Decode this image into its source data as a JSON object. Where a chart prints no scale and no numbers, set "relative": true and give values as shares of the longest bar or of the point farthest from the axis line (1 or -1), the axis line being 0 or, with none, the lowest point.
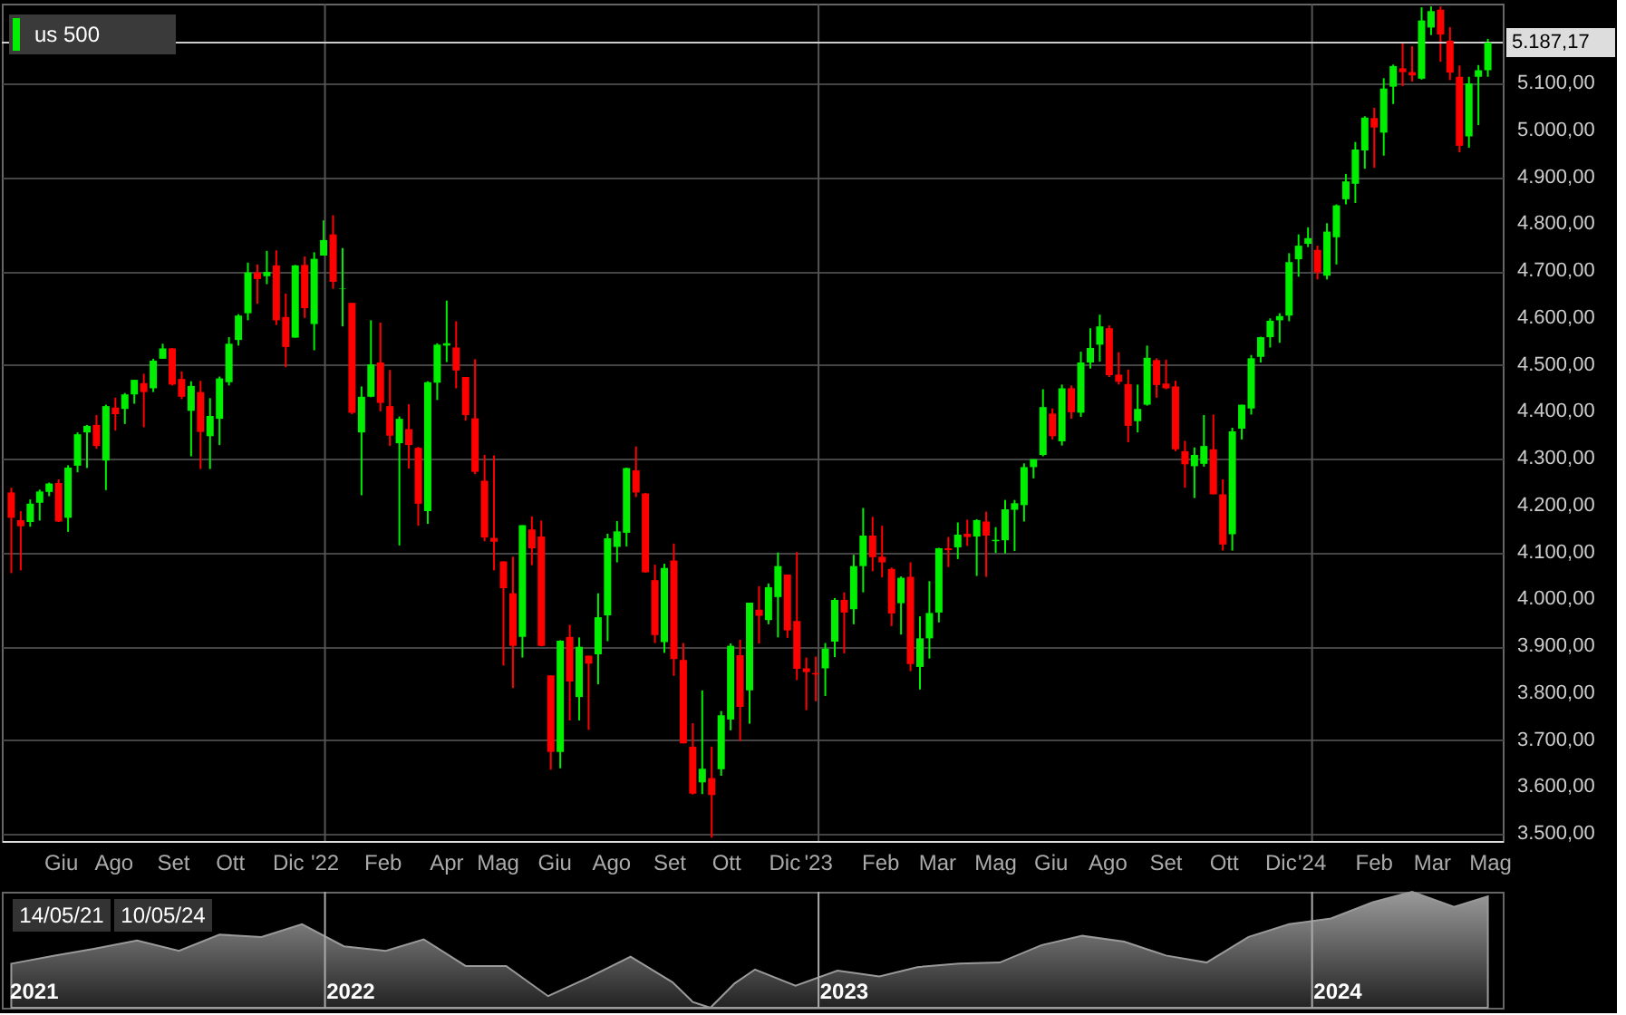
{
  "chart_data": [
    {
      "type": "candlestick",
      "legend": "top left",
      "grid": "y",
      "xlim": [
        "2021-05-07",
        "2024-05-21"
      ],
      "ylim": [
        3485,
        5270
      ],
      "xticks": [
        {
          "value": "2021-06-20",
          "label": "Giu"
        },
        {
          "value": "2021-07-29",
          "label": "Ago"
        },
        {
          "value": "2021-09-11",
          "label": "Set"
        },
        {
          "value": "2021-10-23",
          "label": "Ott"
        },
        {
          "value": "2021-12-05",
          "label": "Dic"
        },
        {
          "value": "2022-01-01",
          "label": "'22"
        },
        {
          "value": "2022-02-13",
          "label": "Feb"
        },
        {
          "value": "2022-04-01",
          "label": "Apr"
        },
        {
          "value": "2022-05-09",
          "label": "Mag"
        },
        {
          "value": "2022-06-20",
          "label": "Giu"
        },
        {
          "value": "2022-08-01",
          "label": "Ago"
        },
        {
          "value": "2022-09-13",
          "label": "Set"
        },
        {
          "value": "2022-10-25",
          "label": "Ott"
        },
        {
          "value": "2022-12-07",
          "label": "Dic"
        },
        {
          "value": "2023-01-01",
          "label": "'23"
        },
        {
          "value": "2023-02-16",
          "label": "Feb"
        },
        {
          "value": "2023-03-30",
          "label": "Mar"
        },
        {
          "value": "2023-05-12",
          "label": "Mag"
        },
        {
          "value": "2023-06-22",
          "label": "Giu"
        },
        {
          "value": "2023-08-03",
          "label": "Ago"
        },
        {
          "value": "2023-09-15",
          "label": "Set"
        },
        {
          "value": "2023-10-28",
          "label": "Ott"
        },
        {
          "value": "2023-12-09",
          "label": "Dic"
        },
        {
          "value": "2024-01-01",
          "label": "'24"
        },
        {
          "value": "2024-02-16",
          "label": "Feb"
        },
        {
          "value": "2024-03-30",
          "label": "Mar"
        },
        {
          "value": "2024-05-12",
          "label": "Mag"
        }
      ],
      "yticks": [
        {
          "value": 3500,
          "label": "3.500,00"
        },
        {
          "value": 3600,
          "label": "3.600,00"
        },
        {
          "value": 3700,
          "label": "3.700,00"
        },
        {
          "value": 3800,
          "label": "3.800,00"
        },
        {
          "value": 3900,
          "label": "3.900,00"
        },
        {
          "value": 4000,
          "label": "4.000,00"
        },
        {
          "value": 4100,
          "label": "4.100,00"
        },
        {
          "value": 4200,
          "label": "4.200,00"
        },
        {
          "value": 4300,
          "label": "4.300,00"
        },
        {
          "value": 4400,
          "label": "4.400,00"
        },
        {
          "value": 4500,
          "label": "4.500,00"
        },
        {
          "value": 4600,
          "label": "4.600,00"
        },
        {
          "value": 4700,
          "label": "4.700,00"
        },
        {
          "value": 4800,
          "label": "4.800,00"
        },
        {
          "value": 4900,
          "label": "4.900,00"
        },
        {
          "value": 5000,
          "label": "5.000,00"
        },
        {
          "value": 5100,
          "label": "5.100,00"
        }
      ],
      "ref_lines": [
        {
          "axis": "x",
          "value": "2022-01-01",
          "color": "#555555"
        },
        {
          "axis": "x",
          "value": "2023-01-01",
          "color": "#555555"
        },
        {
          "axis": "x",
          "value": "2024-01-01",
          "color": "#555555"
        },
        {
          "axis": "y",
          "value": 5187.17,
          "label": "5.187,17",
          "color": "#cccccc"
        }
      ],
      "series": [
        {
          "name": "us 500",
          "color": "#00ee00",
          "x": [
            "2021-05-14",
            "2021-05-21",
            "2021-05-28",
            "2021-06-04",
            "2021-06-11",
            "2021-06-18",
            "2021-06-25",
            "2021-07-02",
            "2021-07-09",
            "2021-07-16",
            "2021-07-23",
            "2021-07-30",
            "2021-08-06",
            "2021-08-13",
            "2021-08-20",
            "2021-08-27",
            "2021-09-03",
            "2021-09-10",
            "2021-09-17",
            "2021-09-24",
            "2021-10-01",
            "2021-10-08",
            "2021-10-15",
            "2021-10-22",
            "2021-10-29",
            "2021-11-05",
            "2021-11-12",
            "2021-11-19",
            "2021-11-26",
            "2021-12-03",
            "2021-12-10",
            "2021-12-17",
            "2021-12-24",
            "2021-12-31",
            "2022-01-07",
            "2022-01-14",
            "2022-01-21",
            "2022-01-28",
            "2022-02-04",
            "2022-02-11",
            "2022-02-18",
            "2022-02-25",
            "2022-03-04",
            "2022-03-11",
            "2022-03-18",
            "2022-03-25",
            "2022-04-01",
            "2022-04-08",
            "2022-04-15",
            "2022-04-22",
            "2022-04-29",
            "2022-05-06",
            "2022-05-13",
            "2022-05-20",
            "2022-05-27",
            "2022-06-03",
            "2022-06-10",
            "2022-06-17",
            "2022-06-24",
            "2022-07-01",
            "2022-07-08",
            "2022-07-15",
            "2022-07-22",
            "2022-07-29",
            "2022-08-05",
            "2022-08-12",
            "2022-08-19",
            "2022-08-26",
            "2022-09-02",
            "2022-09-09",
            "2022-09-16",
            "2022-09-23",
            "2022-09-30",
            "2022-10-07",
            "2022-10-14",
            "2022-10-21",
            "2022-10-28",
            "2022-11-04",
            "2022-11-11",
            "2022-11-18",
            "2022-11-25",
            "2022-12-02",
            "2022-12-09",
            "2022-12-16",
            "2022-12-23",
            "2022-12-30",
            "2023-01-06",
            "2023-01-13",
            "2023-01-20",
            "2023-01-27",
            "2023-02-03",
            "2023-02-10",
            "2023-02-17",
            "2023-02-24",
            "2023-03-03",
            "2023-03-10",
            "2023-03-17",
            "2023-03-24",
            "2023-03-31",
            "2023-04-07",
            "2023-04-14",
            "2023-04-21",
            "2023-04-28",
            "2023-05-05",
            "2023-05-12",
            "2023-05-19",
            "2023-05-26",
            "2023-06-02",
            "2023-06-09",
            "2023-06-16",
            "2023-06-23",
            "2023-06-30",
            "2023-07-07",
            "2023-07-14",
            "2023-07-21",
            "2023-07-28",
            "2023-08-04",
            "2023-08-11",
            "2023-08-18",
            "2023-08-25",
            "2023-09-01",
            "2023-09-08",
            "2023-09-15",
            "2023-09-22",
            "2023-09-29",
            "2023-10-06",
            "2023-10-13",
            "2023-10-20",
            "2023-10-27",
            "2023-11-03",
            "2023-11-10",
            "2023-11-17",
            "2023-11-24",
            "2023-12-01",
            "2023-12-08",
            "2023-12-15",
            "2023-12-22",
            "2023-12-29",
            "2024-01-05",
            "2024-01-12",
            "2024-01-19",
            "2024-01-26",
            "2024-02-02",
            "2024-02-09",
            "2024-02-16",
            "2024-02-23",
            "2024-03-01",
            "2024-03-08",
            "2024-03-15",
            "2024-03-22",
            "2024-03-29",
            "2024-04-05",
            "2024-04-12",
            "2024-04-19",
            "2024-04-26",
            "2024-05-03",
            "2024-05-10"
          ],
          "ohlc": [
            [
              4228,
              4238,
              4056,
              4174
            ],
            [
              4169,
              4188,
              4062,
              4156
            ],
            [
              4165,
              4213,
              4155,
              4204
            ],
            [
              4206,
              4234,
              4168,
              4230
            ],
            [
              4229,
              4249,
              4220,
              4247
            ],
            [
              4248,
              4256,
              4165,
              4166
            ],
            [
              4174,
              4286,
              4144,
              4281
            ],
            [
              4285,
              4356,
              4271,
              4352
            ],
            [
              4356,
              4372,
              4280,
              4370
            ],
            [
              4372,
              4393,
              4321,
              4327
            ],
            [
              4296,
              4415,
              4233,
              4412
            ],
            [
              4409,
              4430,
              4360,
              4395
            ],
            [
              4406,
              4440,
              4374,
              4437
            ],
            [
              4437,
              4468,
              4417,
              4468
            ],
            [
              4461,
              4481,
              4367,
              4442
            ],
            [
              4450,
              4513,
              4442,
              4509
            ],
            [
              4513,
              4545,
              4513,
              4535
            ],
            [
              4535,
              4536,
              4456,
              4458
            ],
            [
              4470,
              4486,
              4427,
              4432
            ],
            [
              4402,
              4465,
              4305,
              4455
            ],
            [
              4442,
              4466,
              4278,
              4357
            ],
            [
              4348,
              4429,
              4278,
              4391
            ],
            [
              4385,
              4475,
              4329,
              4471
            ],
            [
              4463,
              4559,
              4456,
              4545
            ],
            [
              4553,
              4608,
              4541,
              4605
            ],
            [
              4610,
              4718,
              4595,
              4697
            ],
            [
              4697,
              4714,
              4630,
              4683
            ],
            [
              4689,
              4743,
              4672,
              4698
            ],
            [
              4712,
              4744,
              4585,
              4595
            ],
            [
              4602,
              4652,
              4495,
              4538
            ],
            [
              4558,
              4713,
              4558,
              4712
            ],
            [
              4713,
              4731,
              4600,
              4621
            ],
            [
              4587,
              4740,
              4531,
              4726
            ],
            [
              4733,
              4808,
              4733,
              4766
            ],
            [
              4778,
              4819,
              4662,
              4677
            ],
            [
              4662,
              4749,
              4582,
              4663
            ],
            [
              4632,
              4632,
              4395,
              4398
            ],
            [
              4356,
              4454,
              4222,
              4432
            ],
            [
              4432,
              4595,
              4431,
              4501
            ],
            [
              4505,
              4590,
              4401,
              4419
            ],
            [
              4412,
              4489,
              4327,
              4349
            ],
            [
              4333,
              4390,
              4115,
              4385
            ],
            [
              4363,
              4416,
              4279,
              4329
            ],
            [
              4323,
              4325,
              4157,
              4204
            ],
            [
              4188,
              4465,
              4161,
              4463
            ],
            [
              4462,
              4546,
              4425,
              4543
            ],
            [
              4541,
              4637,
              4506,
              4546
            ],
            [
              4537,
              4593,
              4450,
              4488
            ],
            [
              4474,
              4474,
              4381,
              4393
            ],
            [
              4386,
              4512,
              4267,
              4272
            ],
            [
              4253,
              4308,
              4124,
              4132
            ],
            [
              4131,
              4307,
              4062,
              4123
            ],
            [
              4081,
              4081,
              3859,
              4024
            ],
            [
              4013,
              4091,
              3811,
              3901
            ],
            [
              3920,
              4158,
              3876,
              4158
            ],
            [
              4149,
              4177,
              4073,
              4109
            ],
            [
              4134,
              4168,
              3900,
              3901
            ],
            [
              3838,
              3838,
              3637,
              3675
            ],
            [
              3675,
              3913,
              3640,
              3912
            ],
            [
              3920,
              3946,
              3742,
              3825
            ],
            [
              3792,
              3919,
              3742,
              3899
            ],
            [
              3880,
              3880,
              3722,
              3863
            ],
            [
              3883,
              4013,
              3819,
              3962
            ],
            [
              3966,
              4140,
              3911,
              4130
            ],
            [
              4112,
              4167,
              4079,
              4145
            ],
            [
              4142,
              4281,
              4113,
              4280
            ],
            [
              4275,
              4326,
              4218,
              4228
            ],
            [
              4226,
              4227,
              4057,
              4058
            ],
            [
              4041,
              4074,
              3907,
              3924
            ],
            [
              3909,
              4076,
              3886,
              4067
            ],
            [
              4083,
              4119,
              3837,
              3873
            ],
            [
              3871,
              3907,
              3693,
              3693
            ],
            [
              3686,
              3736,
              3584,
              3586
            ],
            [
              3610,
              3806,
              3585,
              3639
            ],
            [
              3619,
              3686,
              3492,
              3583
            ],
            [
              3638,
              3762,
              3624,
              3753
            ],
            [
              3744,
              3906,
              3721,
              3901
            ],
            [
              3881,
              3914,
              3698,
              3771
            ],
            [
              3806,
              3993,
              3735,
              3993
            ],
            [
              3978,
              4028,
              3906,
              3965
            ],
            [
              3956,
              4034,
              3947,
              4026
            ],
            [
              4005,
              4100,
              3919,
              4071
            ],
            [
              4053,
              4053,
              3918,
              3934
            ],
            [
              3954,
              4101,
              3828,
              3852
            ],
            [
              3853,
              3876,
              3764,
              3845
            ],
            [
              3843,
              3878,
              3783,
              3840
            ],
            [
              3853,
              3907,
              3794,
              3895
            ],
            [
              3910,
              4003,
              3877,
              3999
            ],
            [
              3999,
              4015,
              3885,
              3972
            ],
            [
              3979,
              4095,
              3947,
              4071
            ],
            [
              4071,
              4195,
              4015,
              4136
            ],
            [
              4136,
              4176,
              4060,
              4090
            ],
            [
              4091,
              4157,
              4047,
              4079
            ],
            [
              4065,
              4068,
              3943,
              3970
            ],
            [
              3992,
              4049,
              3925,
              4046
            ],
            [
              4048,
              4079,
              3847,
              3862
            ],
            [
              3856,
              3964,
              3808,
              3917
            ],
            [
              3917,
              4039,
              3874,
              3971
            ],
            [
              3972,
              4110,
              3951,
              4109
            ],
            [
              4109,
              4133,
              4069,
              4105
            ],
            [
              4111,
              4164,
              4086,
              4138
            ],
            [
              4140,
              4170,
              4114,
              4133
            ],
            [
              4134,
              4171,
              4050,
              4169
            ],
            [
              4166,
              4187,
              4048,
              4136
            ],
            [
              4124,
              4154,
              4099,
              4127
            ],
            [
              4126,
              4212,
              4098,
              4192
            ],
            [
              4191,
              4212,
              4103,
              4205
            ],
            [
              4201,
              4290,
              4166,
              4282
            ],
            [
              4282,
              4299,
              4258,
              4299
            ],
            [
              4308,
              4448,
              4305,
              4410
            ],
            [
              4396,
              4407,
              4341,
              4348
            ],
            [
              4337,
              4458,
              4328,
              4450
            ],
            [
              4450,
              4456,
              4385,
              4399
            ],
            [
              4398,
              4528,
              4389,
              4505
            ],
            [
              4505,
              4578,
              4492,
              4536
            ],
            [
              4543,
              4607,
              4507,
              4582
            ],
            [
              4578,
              4584,
              4474,
              4478
            ],
            [
              4479,
              4527,
              4458,
              4464
            ],
            [
              4459,
              4490,
              4335,
              4370
            ],
            [
              4380,
              4458,
              4356,
              4406
            ],
            [
              4415,
              4541,
              4413,
              4515
            ],
            [
              4510,
              4514,
              4430,
              4457
            ],
            [
              4460,
              4511,
              4448,
              4450
            ],
            [
              4454,
              4466,
              4316,
              4320
            ],
            [
              4316,
              4338,
              4238,
              4288
            ],
            [
              4284,
              4324,
              4216,
              4308
            ],
            [
              4289,
              4393,
              4283,
              4327
            ],
            [
              4320,
              4394,
              4224,
              4224
            ],
            [
              4224,
              4256,
              4104,
              4117
            ],
            [
              4139,
              4366,
              4104,
              4358
            ],
            [
              4364,
              4415,
              4341,
              4415
            ],
            [
              4407,
              4521,
              4394,
              4514
            ],
            [
              4517,
              4560,
              4505,
              4559
            ],
            [
              4559,
              4599,
              4537,
              4594
            ],
            [
              4595,
              4610,
              4547,
              4604
            ],
            [
              4605,
              4738,
              4593,
              4719
            ],
            [
              4725,
              4778,
              4688,
              4754
            ],
            [
              4758,
              4793,
              4751,
              4770
            ],
            [
              4745,
              4754,
              4682,
              4697
            ],
            [
              4690,
              4802,
              4682,
              4784
            ],
            [
              4772,
              4842,
              4714,
              4840
            ],
            [
              4853,
              4907,
              4842,
              4891
            ],
            [
              4886,
              4975,
              4845,
              4959
            ],
            [
              4957,
              5030,
              4918,
              5027
            ],
            [
              5026,
              5048,
              4920,
              5006
            ],
            [
              4995,
              5111,
              4946,
              5089
            ],
            [
              5093,
              5140,
              5056,
              5137
            ],
            [
              5132,
              5189,
              5094,
              5124
            ],
            [
              5124,
              5179,
              5104,
              5117
            ],
            [
              5110,
              5262,
              5108,
              5234
            ],
            [
              5219,
              5264,
              5203,
              5254
            ],
            [
              5257,
              5264,
              5146,
              5204
            ],
            [
              5191,
              5220,
              5107,
              5123
            ],
            [
              5114,
              5138,
              4953,
              4967
            ],
            [
              4987,
              5114,
              4963,
              5100
            ],
            [
              5114,
              5139,
              5011,
              5128
            ],
            [
              5128,
              5195,
              5114,
              5187.17
            ]
          ],
          "colors": [
            "#ff0000",
            "#ff0000",
            "#00ee00",
            "#00ee00",
            "#00ee00",
            "#ff0000",
            "#00ee00",
            "#00ee00",
            "#00ee00",
            "#ff0000",
            "#00ee00",
            "#ff0000",
            "#00ee00",
            "#00ee00",
            "#ff0000",
            "#00ee00",
            "#00ee00",
            "#ff0000",
            "#ff0000",
            "#00ee00",
            "#ff0000",
            "#00ee00",
            "#00ee00",
            "#00ee00",
            "#00ee00",
            "#00ee00",
            "#ff0000",
            "#00ee00",
            "#ff0000",
            "#ff0000",
            "#00ee00",
            "#ff0000",
            "#00ee00",
            "#00ee00",
            "#ff0000",
            "#00ee00",
            "#ff0000",
            "#00ee00",
            "#00ee00",
            "#ff0000",
            "#ff0000",
            "#00ee00",
            "#ff0000",
            "#ff0000",
            "#00ee00",
            "#00ee00",
            "#00ee00",
            "#ff0000",
            "#ff0000",
            "#ff0000",
            "#ff0000",
            "#ff0000",
            "#ff0000",
            "#ff0000",
            "#00ee00",
            "#ff0000",
            "#ff0000",
            "#ff0000",
            "#00ee00",
            "#ff0000",
            "#00ee00",
            "#ff0000",
            "#00ee00",
            "#00ee00",
            "#00ee00",
            "#00ee00",
            "#ff0000",
            "#ff0000",
            "#ff0000",
            "#00ee00",
            "#ff0000",
            "#ff0000",
            "#ff0000",
            "#00ee00",
            "#ff0000",
            "#00ee00",
            "#00ee00",
            "#ff0000",
            "#00ee00",
            "#ff0000",
            "#00ee00",
            "#00ee00",
            "#ff0000",
            "#ff0000",
            "#ff0000",
            "#ff0000",
            "#00ee00",
            "#00ee00",
            "#ff0000",
            "#00ee00",
            "#00ee00",
            "#ff0000",
            "#ff0000",
            "#ff0000",
            "#00ee00",
            "#ff0000",
            "#00ee00",
            "#00ee00",
            "#00ee00",
            "#ff0000",
            "#00ee00",
            "#ff0000",
            "#00ee00",
            "#ff0000",
            "#00ee00",
            "#00ee00",
            "#00ee00",
            "#00ee00",
            "#00ee00",
            "#00ee00",
            "#ff0000",
            "#00ee00",
            "#ff0000",
            "#00ee00",
            "#00ee00",
            "#00ee00",
            "#ff0000",
            "#ff0000",
            "#ff0000",
            "#00ee00",
            "#00ee00",
            "#ff0000",
            "#ff0000",
            "#ff0000",
            "#ff0000",
            "#00ee00",
            "#00ee00",
            "#ff0000",
            "#ff0000",
            "#00ee00",
            "#00ee00",
            "#00ee00",
            "#00ee00",
            "#00ee00",
            "#00ee00",
            "#00ee00",
            "#00ee00",
            "#00ee00",
            "#ff0000",
            "#00ee00",
            "#00ee00",
            "#00ee00",
            "#00ee00",
            "#00ee00",
            "#ff0000",
            "#00ee00",
            "#00ee00",
            "#ff0000",
            "#ff0000",
            "#00ee00",
            "#00ee00",
            "#ff0000",
            "#ff0000",
            "#ff0000",
            "#00ee00",
            "#00ee00",
            "#00ee00"
          ]
        }
      ]
    },
    {
      "type": "area",
      "relative": true,
      "color": "#9a9a9a",
      "xlim": [
        "2021-05-07",
        "2024-05-21"
      ],
      "xticks": [
        {
          "value": "2021-05-31",
          "label": "2021"
        },
        {
          "value": "2022-01-20",
          "label": "2022"
        },
        {
          "value": "2023-01-20",
          "label": "2023"
        },
        {
          "value": "2024-01-20",
          "label": "2024"
        }
      ],
      "ref_lines": [
        {
          "axis": "x",
          "value": "2022-01-01",
          "color": "#aaaaaa"
        },
        {
          "axis": "x",
          "value": "2023-01-01",
          "color": "#aaaaaa"
        },
        {
          "axis": "x",
          "value": "2024-01-01",
          "color": "#aaaaaa"
        }
      ],
      "x": [
        "2021-05-14",
        "2021-06-15",
        "2021-07-15",
        "2021-08-15",
        "2021-09-15",
        "2021-10-15",
        "2021-11-15",
        "2021-12-15",
        "2022-01-15",
        "2022-02-15",
        "2022-03-15",
        "2022-04-15",
        "2022-05-15",
        "2022-06-15",
        "2022-07-15",
        "2022-08-15",
        "2022-09-15",
        "2022-09-30",
        "2022-10-13",
        "2022-10-31",
        "2022-11-15",
        "2022-12-15",
        "2023-01-15",
        "2023-02-15",
        "2023-03-15",
        "2023-04-15",
        "2023-05-15",
        "2023-06-15",
        "2023-07-15",
        "2023-08-15",
        "2023-09-15",
        "2023-10-15",
        "2023-11-15",
        "2023-12-15",
        "2024-01-15",
        "2024-02-15",
        "2024-03-15",
        "2024-04-15",
        "2024-05-10"
      ],
      "values": [
        0.38,
        0.45,
        0.51,
        0.58,
        0.49,
        0.63,
        0.61,
        0.72,
        0.53,
        0.49,
        0.59,
        0.36,
        0.36,
        0.1,
        0.26,
        0.44,
        0.22,
        0.05,
        0,
        0.21,
        0.33,
        0.19,
        0.32,
        0.27,
        0.35,
        0.38,
        0.39,
        0.54,
        0.62,
        0.57,
        0.45,
        0.39,
        0.61,
        0.72,
        0.77,
        0.91,
        1,
        0.87,
        0.96
      ],
      "annotations": [
        "14/05/21",
        "10/05/24"
      ]
    }
  ]
}
